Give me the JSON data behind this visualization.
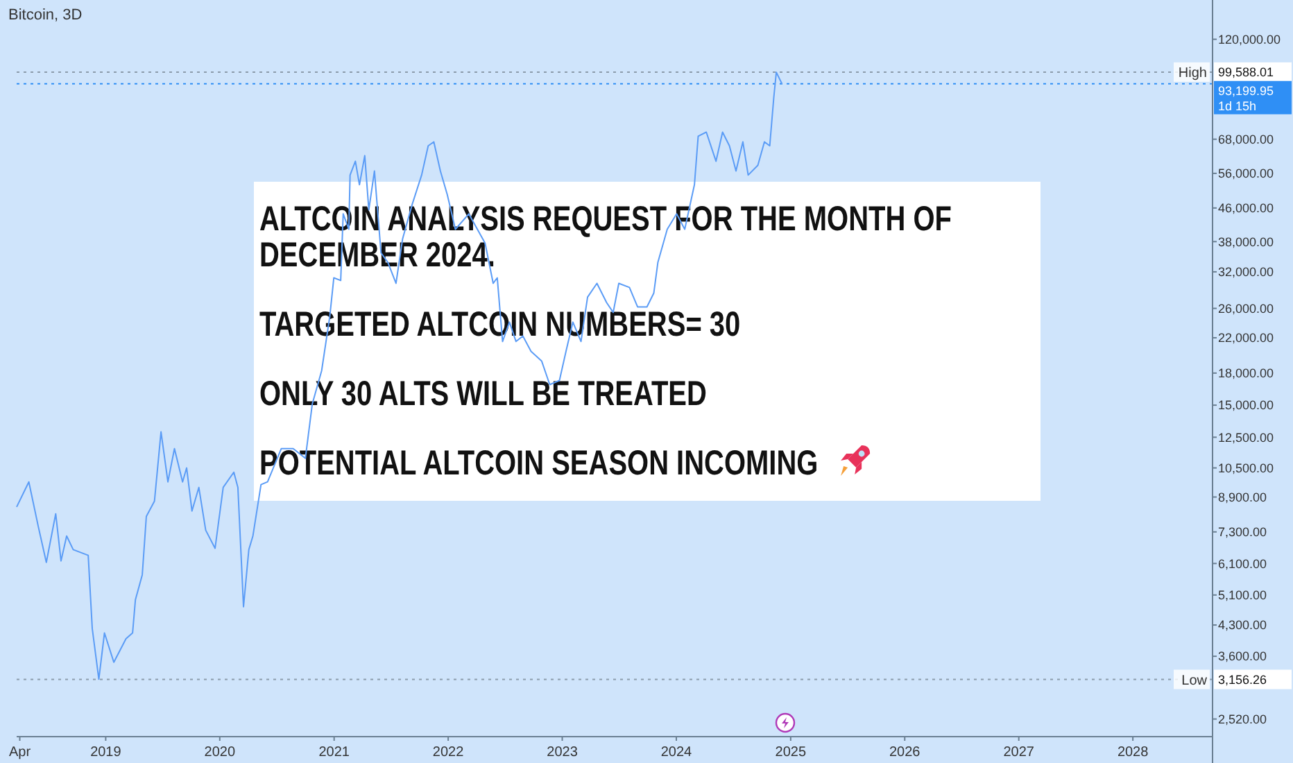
{
  "chart_data": {
    "type": "line",
    "title": "Bitcoin, 3D",
    "log": "y",
    "x": [
      "2018-03-22",
      "2018-04-30",
      "2018-05-30",
      "2018-06-25",
      "2018-07-25",
      "2018-08-11",
      "2018-08-29",
      "2018-09-19",
      "2018-11-06",
      "2018-11-19",
      "2018-12-10",
      "2018-12-28",
      "2019-01-27",
      "2019-03-07",
      "2019-03-28",
      "2019-04-06",
      "2019-04-28",
      "2019-05-11",
      "2019-06-06",
      "2019-06-27",
      "2019-07-19",
      "2019-08-09",
      "2019-09-04",
      "2019-09-17",
      "2019-10-04",
      "2019-10-26",
      "2019-11-17",
      "2019-12-17",
      "2020-01-12",
      "2020-02-15",
      "2020-02-28",
      "2020-03-17",
      "2020-04-03",
      "2020-04-16",
      "2020-05-12",
      "2020-06-02",
      "2020-07-16",
      "2020-08-23",
      "2020-10-01",
      "2020-10-23",
      "2020-11-22",
      "2020-12-18",
      "2020-12-31",
      "2021-01-22",
      "2021-01-30",
      "2021-02-17",
      "2021-02-21",
      "2021-03-10",
      "2021-03-23",
      "2021-04-09",
      "2021-04-22",
      "2021-05-10",
      "2021-05-31",
      "2021-06-22",
      "2021-07-18",
      "2021-08-08",
      "2021-09-08",
      "2021-10-08",
      "2021-10-29",
      "2021-11-16",
      "2021-12-07",
      "2021-12-29",
      "2022-01-24",
      "2022-03-08",
      "2022-04-29",
      "2022-05-25",
      "2022-06-07",
      "2022-06-24",
      "2022-07-16",
      "2022-08-06",
      "2022-08-28",
      "2022-09-23",
      "2022-10-27",
      "2022-11-22",
      "2022-12-23",
      "2023-01-13",
      "2023-02-04",
      "2023-03-02",
      "2023-03-23",
      "2023-04-22",
      "2023-05-23",
      "2023-06-13",
      "2023-07-01",
      "2023-08-04",
      "2023-08-30",
      "2023-09-29",
      "2023-10-21",
      "2023-11-03",
      "2023-12-03",
      "2024-01-02",
      "2024-01-28",
      "2024-02-28",
      "2024-03-11",
      "2024-04-06",
      "2024-05-07",
      "2024-05-28",
      "2024-06-19",
      "2024-07-10",
      "2024-08-01",
      "2024-08-18",
      "2024-09-18",
      "2024-10-09",
      "2024-10-26",
      "2024-11-08",
      "2024-11-16",
      "2024-12-04"
    ],
    "series": [
      {
        "color": "#5b9cf6",
        "values": [
          8410,
          9700,
          7540,
          6140,
          8090,
          6190,
          7130,
          6600,
          6390,
          4210,
          3160,
          4110,
          3480,
          3980,
          4110,
          4960,
          5720,
          7970,
          8690,
          12890,
          9700,
          11720,
          9700,
          10500,
          8220,
          9400,
          7370,
          6650,
          9400,
          10250,
          9400,
          4770,
          6600,
          7130,
          9550,
          9700,
          11720,
          11720,
          11090,
          15090,
          18240,
          24810,
          30930,
          30460,
          44490,
          40760,
          55470,
          60000,
          52500,
          61940,
          45500,
          56760,
          35650,
          33760,
          29980,
          38570,
          47000,
          55470,
          65500,
          67000,
          56760,
          49660,
          40760,
          44490,
          37670,
          29980,
          30930,
          21540,
          24050,
          21540,
          22220,
          20370,
          19280,
          16860,
          17260,
          20370,
          24050,
          21540,
          27720,
          29980,
          26870,
          25410,
          29980,
          29290,
          26220,
          26220,
          28370,
          33760,
          40760,
          44490,
          40760,
          52500,
          69180,
          70800,
          60000,
          70800,
          65500,
          56760,
          67000,
          55470,
          58630,
          67000,
          65500,
          86300,
          99500,
          93199.95
        ]
      }
    ],
    "xlim": [
      "2018-03-22",
      "2028-09-12"
    ],
    "xticks": [
      {
        "value": "2018-04",
        "label": "Apr"
      },
      {
        "value": "2019",
        "label": "2019"
      },
      {
        "value": "2020",
        "label": "2020"
      },
      {
        "value": "2021",
        "label": "2021"
      },
      {
        "value": "2022",
        "label": "2022"
      },
      {
        "value": "2023",
        "label": "2023"
      },
      {
        "value": "2024",
        "label": "2024"
      },
      {
        "value": "2025",
        "label": "2025"
      },
      {
        "value": "2026",
        "label": "2026"
      },
      {
        "value": "2027",
        "label": "2027"
      },
      {
        "value": "2028",
        "label": "2028"
      }
    ],
    "ylim": [
      2280,
      150000
    ],
    "yticks": [
      {
        "value": 2520,
        "label": "2,520.00"
      },
      {
        "value": 3600,
        "label": "3,600.00"
      },
      {
        "value": 4300,
        "label": "4,300.00"
      },
      {
        "value": 5100,
        "label": "5,100.00"
      },
      {
        "value": 6100,
        "label": "6,100.00"
      },
      {
        "value": 7300,
        "label": "7,300.00"
      },
      {
        "value": 8900,
        "label": "8,900.00"
      },
      {
        "value": 10500,
        "label": "10,500.00"
      },
      {
        "value": 12500,
        "label": "12,500.00"
      },
      {
        "value": 15000,
        "label": "15,000.00"
      },
      {
        "value": 18000,
        "label": "18,000.00"
      },
      {
        "value": 22000,
        "label": "22,000.00"
      },
      {
        "value": 26000,
        "label": "26,000.00"
      },
      {
        "value": 32000,
        "label": "32,000.00"
      },
      {
        "value": 38000,
        "label": "38,000.00"
      },
      {
        "value": 46000,
        "label": "46,000.00"
      },
      {
        "value": 56000,
        "label": "56,000.00"
      },
      {
        "value": 68000,
        "label": "68,000.00"
      },
      {
        "value": 120000,
        "label": "120,000.00"
      }
    ],
    "ref_lines": [
      {
        "axis": "y",
        "value": 99588.01,
        "label": "High",
        "color": "#8c9bab",
        "line_style": "dotted"
      },
      {
        "axis": "y",
        "value": 93199.95,
        "label": "1d 15h",
        "color": "#2f8ff5",
        "line_style": "dotted"
      },
      {
        "axis": "y",
        "value": 3156.26,
        "label": "Low",
        "color": "#8c9bab",
        "line_style": "dotted"
      }
    ],
    "annotations": [
      "ALTCOIN ANALYSIS REQUEST FOR THE MONTH OF DECEMBER 2024.",
      "TARGETED ALTCOIN NUMBERS= 30",
      "ONLY 30 ALTS WILL BE TREATED",
      "POTENTIAL ALTCOIN SEASON INCOMING",
      "99,588.01",
      "93,199.95",
      "3,156.26"
    ]
  }
}
